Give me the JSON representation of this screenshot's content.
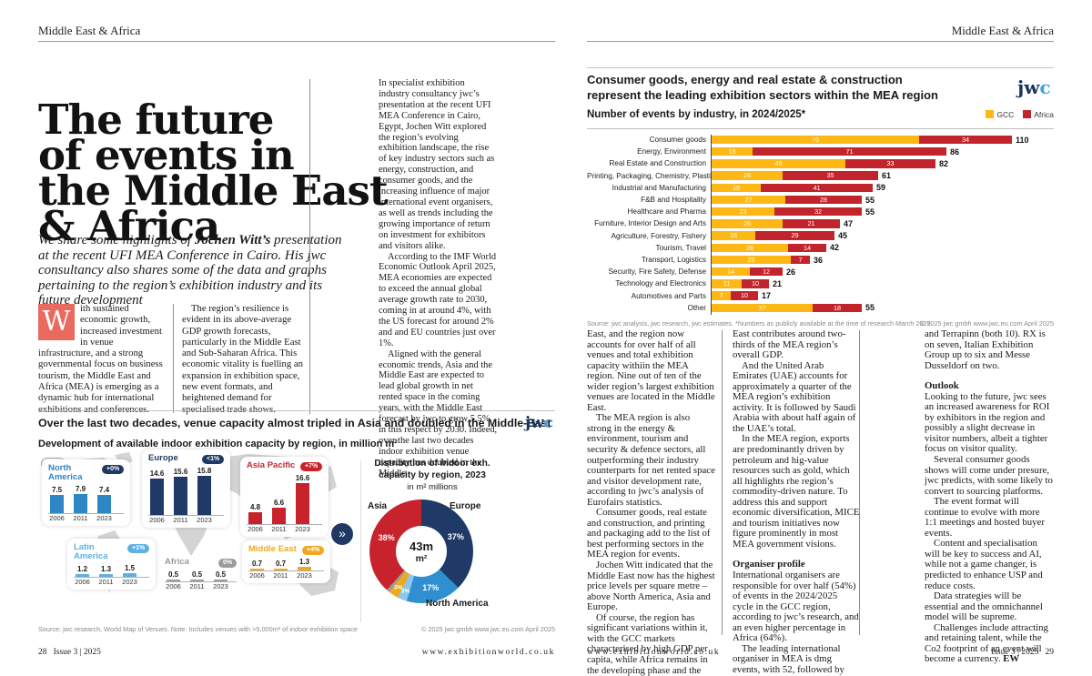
{
  "running_header": {
    "left": "Middle East & Africa",
    "right": "Middle East & Africa"
  },
  "jwc_logo": {
    "jw": "jw",
    "c": "c"
  },
  "left_page": {
    "title_lines": [
      "The future",
      "of events in",
      "the Middle East",
      "& Africa"
    ],
    "standfirst": {
      "pre": "We share some highlights of ",
      "bold": "Jochen Witt’s",
      "post": " presentation at the recent UFI MEA Conference in Cairo. His jwc consultancy also shares some of the data and graphs pertaining to the region’s exhibition industry and its future development"
    },
    "dropcap": "W",
    "col1": "ith sustained economic growth, increased investment in venue infrastructure, and a strong governmental focus on business tourism, the Middle East and Africa (MEA) is emerging as a dynamic hub for international exhibitions and conferences.",
    "col2": "The region’s resilience is evident in its above-average GDP growth forecasts, particularly in the Middle East and Sub-Saharan Africa. This economic vitality is fuelling an expansion in exhibition space, new event formats, and heightened demand for specialised trade shows.",
    "col3_paragraphs": [
      {
        "t": "p",
        "text": "In specialist exhibition industry consultancy jwc’s presentation at the recent UFI MEA Conference in Cairo, Egypt, Jochen Witt explored the region’s evolving exhibition landscape, the rise of key industry sectors such as energy, construction, and consumer goods, and the increasing influence of major international event organisers, as well as trends including the growing importance of return on investment for exhibitors and visitors alike."
      },
      {
        "t": "p",
        "text": "According to the IMF World Economic Outlook April 2025, MEA economies are expected to exceed the annual global average growth rate to 2030, coming in at around 4%, with the US forecast for around 2% and and EU countries just over 1%."
      },
      {
        "t": "p",
        "text": "Aligned with the general economic trends, Asia and the Middle East are expected to lead global growth in net rented space in the coming years, with the Middle East forecast by jwc to grow 5.5% in this respect by 2030. Indeed, over the last two decades indoor exhibition venue capacity has doubled in the Middle"
      }
    ],
    "footer": {
      "page_number": "28",
      "issue": "Issue 3 | 2025",
      "url": "www.exhibitionworld.co.uk"
    }
  },
  "right_page": {
    "col1_paragraphs": [
      {
        "t": "p",
        "text": "East, and the region now accounts for over half of all venues and total exhibition capacity withiin the MEA region. Nine out of ten of the wider region’s largest exhibition venues are located in the Middle East."
      },
      {
        "t": "p",
        "text": "The MEA region is also strong in the energy & environment, tourism and security & defence sectors, all outperforming their industry counterparts for net rented space and visitor development rate, according to jwc’s analysis of Eurofairs statistics."
      },
      {
        "t": "p",
        "text": "Consumer goods, real estate and construction, and printing and packaging add to the list of best performing sectors in the MEA region for events."
      },
      {
        "t": "p",
        "text": "Jochen Witt indicated that the Middle East now has the highest price levels per square metre – above North America, Asia and Europe."
      },
      {
        "t": "p",
        "text": "Of course, the region has significant variations within it, with the GCC markets characterised by high GDP per capita, while Africa remains in the developing phase and the Middle"
      }
    ],
    "col2_paragraphs": [
      {
        "t": "p",
        "text": "East contributes around two-thirds of the MEA region’s overall GDP."
      },
      {
        "t": "p",
        "text": "And the United Arab Emirates (UAE) accounts for approximately a quarter of the MEA region’s exhibition activity. It is followed by Saudi Arabia with about half again of the UAE’s total."
      },
      {
        "t": "p",
        "text": "In the MEA region, exports are predominantly driven by petroleum and hig-value resources such as gold, which all highlights rhe region’s commodity-driven nature. To address this and support economic diversification, MICE and tourism initiatives now figure prominently in most MEA government visions."
      },
      {
        "t": "h",
        "text": "Organiser profile"
      },
      {
        "t": "p",
        "text": "International organisers are responsible for over half (54%) of events in the 2024/2025 cycle in the GCC region, according to jwc’s research, and an even higher percentage in Africa (64%)."
      },
      {
        "t": "p",
        "text": "The leading international organiser in MEA is dmg events, with 52, followed by Informa (39), Dubai World Trade Centre (22), Messe Frankfurt"
      }
    ],
    "col3_paragraphs": [
      {
        "t": "p",
        "text": "and Terrapinn (both 10). RX is on seven, Italian Exhibition Group up to six and Messe Dusseldorf on two."
      },
      {
        "t": "h",
        "text": "Outlook"
      },
      {
        "t": "p",
        "text": "Looking to the future, jwc sees an increased awareness for ROI by exhibitors in the region and possibly a slight decrease in visitor numbers, albeit a tighter focus on visitor quality."
      },
      {
        "t": "p",
        "text": "Several consumer goods shows will come under presure, jwc predicts, with some likely to convert to sourcing platforms."
      },
      {
        "t": "p",
        "text": "The event format will continue to evolve with more 1:1 meetings and hosted buyer events."
      },
      {
        "t": "p",
        "text": "Content and specialisation will be key to success and AI, while not a game changer, is predicted to enhance USP and reduce costs."
      },
      {
        "t": "p",
        "text": "Data strategies will be essential and the omnichannel model will be supreme."
      },
      {
        "t": "p",
        "text": "Challenges include attracting and retaining talent, while the Co2 footprint of an event will become a currency. ",
        "suffix_bold": "EW"
      }
    ],
    "footer": {
      "url": "www.exhibitionworld.co.uk",
      "issue": "Issue 3 | 2025",
      "page_number": "29"
    }
  },
  "chart_data": [
    {
      "type": "bar",
      "id": "venue-capacity-by-region",
      "title": "Over the last two decades, venue capacity almost tripled in Asia and doubled in the Middle-East",
      "subtitle": "Development of available indoor exhibition capacity by region, in million m²",
      "legend_note": {
        "badge": "xx%",
        "label": "CAGR 2006-2023"
      },
      "categories": [
        "2006",
        "2011",
        "2023"
      ],
      "series": [
        {
          "name": "North America",
          "values": [
            7.5,
            7.9,
            7.4
          ],
          "cagr": "+0%",
          "color": "#2f86c4",
          "badge_color": "#1f3864"
        },
        {
          "name": "Europe",
          "values": [
            14.6,
            15.6,
            15.8
          ],
          "cagr": "<1%",
          "color": "#203a67",
          "badge_color": "#1f3864"
        },
        {
          "name": "Asia Pacific",
          "values": [
            4.8,
            6.6,
            16.6
          ],
          "cagr": "+7%",
          "color": "#c8232c",
          "badge_color": "#c8232c"
        },
        {
          "name": "Latin America",
          "values": [
            1.2,
            1.3,
            1.5
          ],
          "cagr": "+1%",
          "color": "#5fb0e0",
          "badge_color": "#5fb0e0"
        },
        {
          "name": "Africa",
          "values": [
            0.5,
            0.5,
            0.5
          ],
          "cagr": "0%",
          "color": "#9b9b9b",
          "badge_color": "#9b9b9b"
        },
        {
          "name": "Middle East",
          "values": [
            0.7,
            0.7,
            1.3
          ],
          "cagr": "+4%",
          "color": "#efa91f",
          "badge_color": "#efa91f"
        }
      ],
      "ylabel": "million m²",
      "donut": {
        "title_lines": [
          "Distribution of indoor exh.",
          "capacity by region, 2023",
          "in m² millions"
        ],
        "center_value": "43m",
        "center_unit": "m²",
        "slices": [
          {
            "name": "Europe",
            "pct": 37,
            "color": "#203a67"
          },
          {
            "name": "North America",
            "pct": 17,
            "color": "#2f8fd0"
          },
          {
            "name": "Latin America",
            "pct": 3,
            "color": "#8cc7ea"
          },
          {
            "name": "Middle East",
            "pct": 3,
            "color": "#efa91f"
          },
          {
            "name": "Africa",
            "pct": 1,
            "color": "#9b9b9b"
          },
          {
            "name": "Asia",
            "pct": 38,
            "color": "#c8232c"
          }
        ]
      },
      "source": "Source: jwc research, World Map of Venues. Note: Includes venues with >5,000m² of indoor exhibition space",
      "copyright": "© 2025 jwc gmbh   www.jwc.eu.com   April 2025"
    },
    {
      "type": "bar",
      "id": "events-by-industry",
      "title_lines": [
        "Consumer goods, energy and real estate & construction",
        "represent the leading exhibition sectors within the MEA region"
      ],
      "subtitle": "Number of events by industry, in 2024/2025*",
      "legend": [
        {
          "name": "GCC",
          "color": "#fdb815"
        },
        {
          "name": "Africa",
          "color": "#c2242c"
        }
      ],
      "categories": [
        "Consumer goods",
        "Energy, Environment",
        "Real Estate and Construction",
        "Printing, Packaging, Chemistry, Plastics",
        "Industrial and Manufacturing",
        "F&B and Hospitality",
        "Healthcare and Pharma",
        "Furniture, Interior Design and Arts",
        "Agriculture, Forestry, Fishery",
        "Tourism, Travel",
        "Transport, Logistics",
        "Security, Fire Safety, Defense",
        "Technology and Electronics",
        "Automotives and Parts",
        "Other"
      ],
      "series": [
        {
          "name": "GCC",
          "values": [
            76,
            15,
            49,
            26,
            18,
            27,
            23,
            26,
            16,
            28,
            29,
            14,
            11,
            7,
            37
          ]
        },
        {
          "name": "Africa",
          "values": [
            34,
            71,
            33,
            35,
            41,
            28,
            32,
            21,
            29,
            14,
            7,
            12,
            10,
            10,
            18
          ]
        }
      ],
      "totals": [
        110,
        86,
        82,
        61,
        59,
        55,
        55,
        47,
        45,
        42,
        36,
        26,
        21,
        17,
        55
      ],
      "xlim": [
        0,
        110
      ],
      "source": "Source: jwc analysis, jwc research, jwc estimates. *Numbers as publicly available at the time of research March 2025",
      "copyright": "© 2025 jwc gmbh   www.jwc.eu.com   April 2025"
    }
  ]
}
